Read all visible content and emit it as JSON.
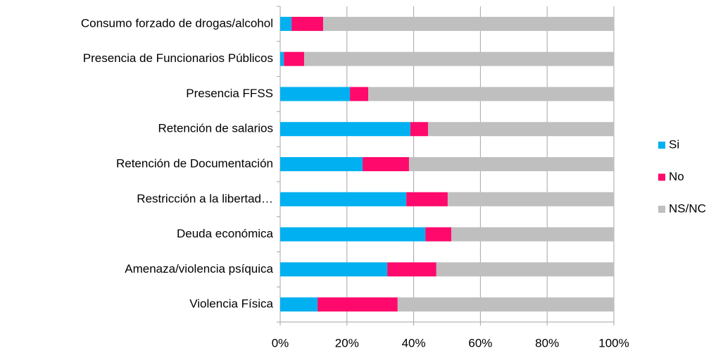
{
  "chart_data": {
    "type": "bar",
    "orientation": "horizontal",
    "stacked": true,
    "categories": [
      "Consumo forzado de drogas/alcohol",
      "Presencia de Funcionarios Públicos",
      "Presencia FFSS",
      "Retención de salarios",
      "Retención de Documentación",
      "Restricción a la libertad…",
      "Deuda económica",
      "Amenaza/violencia psíquica",
      "Violencia Física"
    ],
    "series": [
      {
        "name": "Si",
        "color": "#00b0f0",
        "values": [
          3.4,
          1.1,
          20.9,
          39.0,
          24.7,
          37.8,
          43.5,
          32.1,
          11.2
        ]
      },
      {
        "name": "No",
        "color": "#ff0a6c",
        "values": [
          9.5,
          6.1,
          5.5,
          5.3,
          13.9,
          12.4,
          7.8,
          14.7,
          24.0
        ]
      },
      {
        "name": "NS/NC",
        "color": "#bfbfbf",
        "values": [
          87.1,
          92.8,
          73.6,
          55.7,
          61.4,
          49.8,
          48.7,
          53.2,
          64.8
        ]
      }
    ],
    "xlim": [
      0,
      100
    ],
    "xticks": [
      {
        "value": 0,
        "label": "0%"
      },
      {
        "value": 20,
        "label": "20%"
      },
      {
        "value": 40,
        "label": "40%"
      },
      {
        "value": 60,
        "label": "60%"
      },
      {
        "value": 80,
        "label": "80%"
      },
      {
        "value": 100,
        "label": "100%"
      }
    ],
    "grid": true,
    "legend": "right"
  }
}
